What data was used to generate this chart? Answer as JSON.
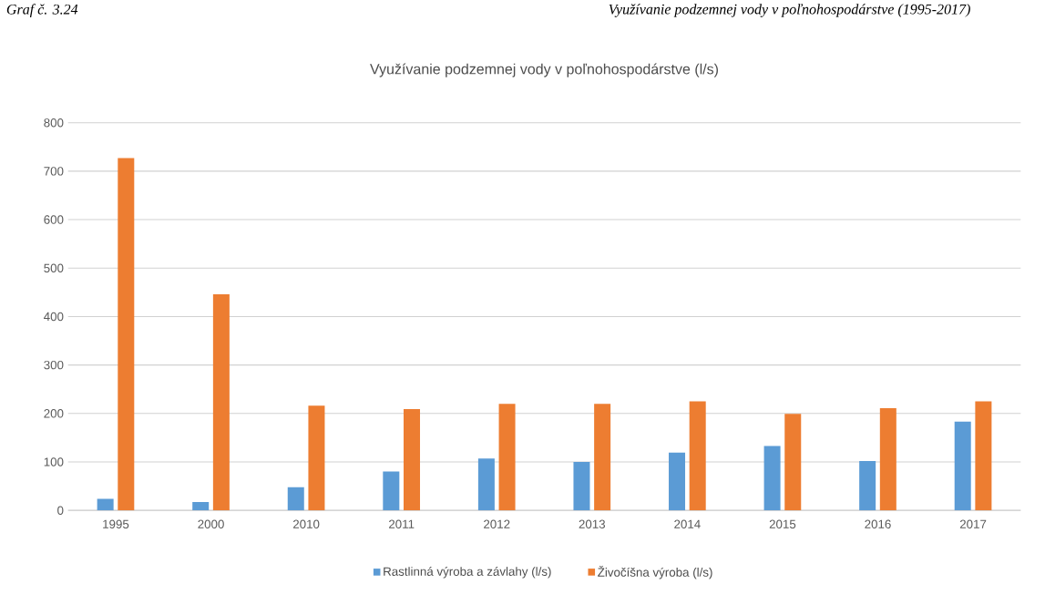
{
  "chart_data": {
    "type": "bar",
    "title": "Využívanie podzemnej vody v poľnohospodárstve (l/s)",
    "annotations": [
      "Graf č. 3.24",
      "Využívanie podzemnej vody v poľnohospodárstve (1995-2017)"
    ],
    "categories": [
      "1995",
      "2000",
      "2010",
      "2011",
      "2012",
      "2013",
      "2014",
      "2015",
      "2016",
      "2017"
    ],
    "series": [
      {
        "name": "Rastlinná výroba a závlahy (l/s)",
        "color": "#5b9bd5",
        "values": [
          24,
          17,
          48,
          80,
          107,
          100,
          119,
          133,
          102,
          183
        ]
      },
      {
        "name": "Živočíšna výroba (l/s)",
        "color": "#ed7d31",
        "values": [
          727,
          446,
          216,
          209,
          220,
          220,
          225,
          199,
          211,
          225
        ]
      }
    ],
    "ylim": [
      0,
      800
    ],
    "yticks": [
      0,
      100,
      200,
      300,
      400,
      500,
      600,
      700,
      800
    ],
    "grid": "y",
    "legend": "bottom"
  }
}
